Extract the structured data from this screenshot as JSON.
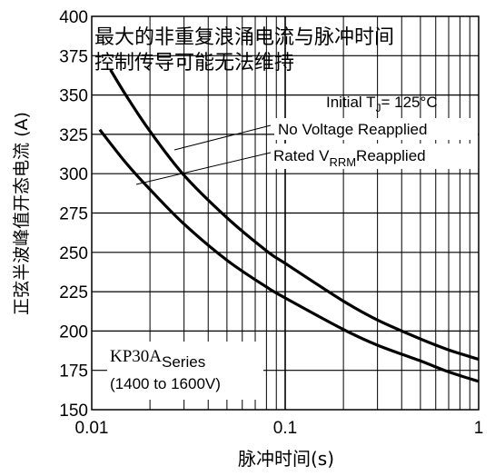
{
  "chart_data": {
    "type": "line",
    "title": "最大的非重复浪涌电流与脉冲时间控制传导可能无法维持",
    "title_lines": [
      "最大的非重复浪涌电流与脉冲时间",
      "控制传导可能无法维持"
    ],
    "xlabel": "脉冲时间(s)",
    "ylabel": "正弦半波峰值开态电流 (A)",
    "x_scale": "log",
    "xlim": [
      0.01,
      1
    ],
    "ylim": [
      150,
      400
    ],
    "x_ticks": [
      "0.01",
      "0.1",
      "1"
    ],
    "y_ticks": [
      "400",
      "375",
      "350",
      "325",
      "300",
      "275",
      "250",
      "225",
      "200",
      "175",
      "150"
    ],
    "grid": true,
    "series": [
      {
        "name": "No Voltage Reapplied",
        "x": [
          0.0125,
          0.015,
          0.02,
          0.03,
          0.05,
          0.08,
          0.1,
          0.2,
          0.3,
          0.5,
          0.7,
          1.0
        ],
        "y": [
          366,
          350,
          327,
          299,
          272,
          251,
          243,
          219,
          207,
          195,
          188,
          182
        ]
      },
      {
        "name": "Rated VRRM Reapplied",
        "x": [
          0.011,
          0.015,
          0.02,
          0.03,
          0.05,
          0.08,
          0.1,
          0.2,
          0.3,
          0.5,
          0.7,
          1.0
        ],
        "y": [
          328,
          307,
          290,
          268,
          245,
          228,
          221,
          201,
          191,
          181,
          174,
          168
        ]
      }
    ],
    "annotations": {
      "initial_tj": "Initial T",
      "initial_tj_sub": "J",
      "initial_tj_value": "= 125°C",
      "no_voltage": "No Voltage Reapplied",
      "rated_prefix": "Rated V",
      "rated_sub": "RRM",
      "rated_suffix": "Reapplied",
      "series_model": "KP30A",
      "series_word": "Series",
      "series_range": "(1400 to 1600V)"
    }
  }
}
